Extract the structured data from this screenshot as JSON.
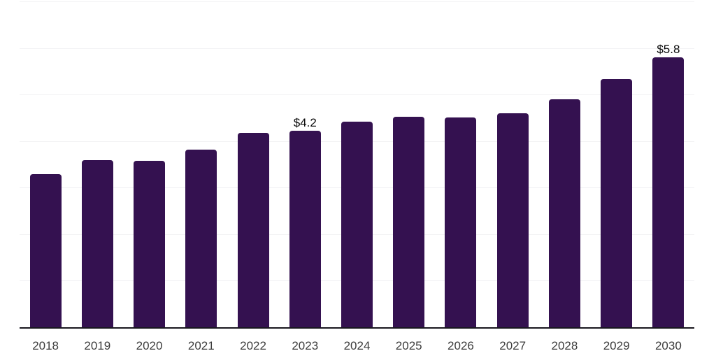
{
  "chart_data": {
    "type": "bar",
    "title": "",
    "xlabel": "",
    "ylabel": "",
    "categories": [
      "2018",
      "2019",
      "2020",
      "2021",
      "2022",
      "2023",
      "2024",
      "2025",
      "2026",
      "2027",
      "2028",
      "2029",
      "2030"
    ],
    "values": [
      3.29,
      3.59,
      3.57,
      3.81,
      4.18,
      4.22,
      4.42,
      4.52,
      4.51,
      4.59,
      4.89,
      5.33,
      5.8
    ],
    "bar_labels": [
      "",
      "",
      "",
      "",
      "",
      "$4.2",
      "",
      "",
      "",
      "",
      "",
      "",
      "$5.8"
    ],
    "ylim": [
      0,
      7
    ],
    "gridline_step": 1,
    "grid": "horizontal",
    "legend": "none",
    "y_tick_labels": "none",
    "colors": {
      "bar": "#341150",
      "axis_line": "#19171f",
      "gridline": "#f2f2f4",
      "tick_label": "#3d3d3d",
      "data_label": "#0a0a0a",
      "background": "#ffffff"
    }
  }
}
